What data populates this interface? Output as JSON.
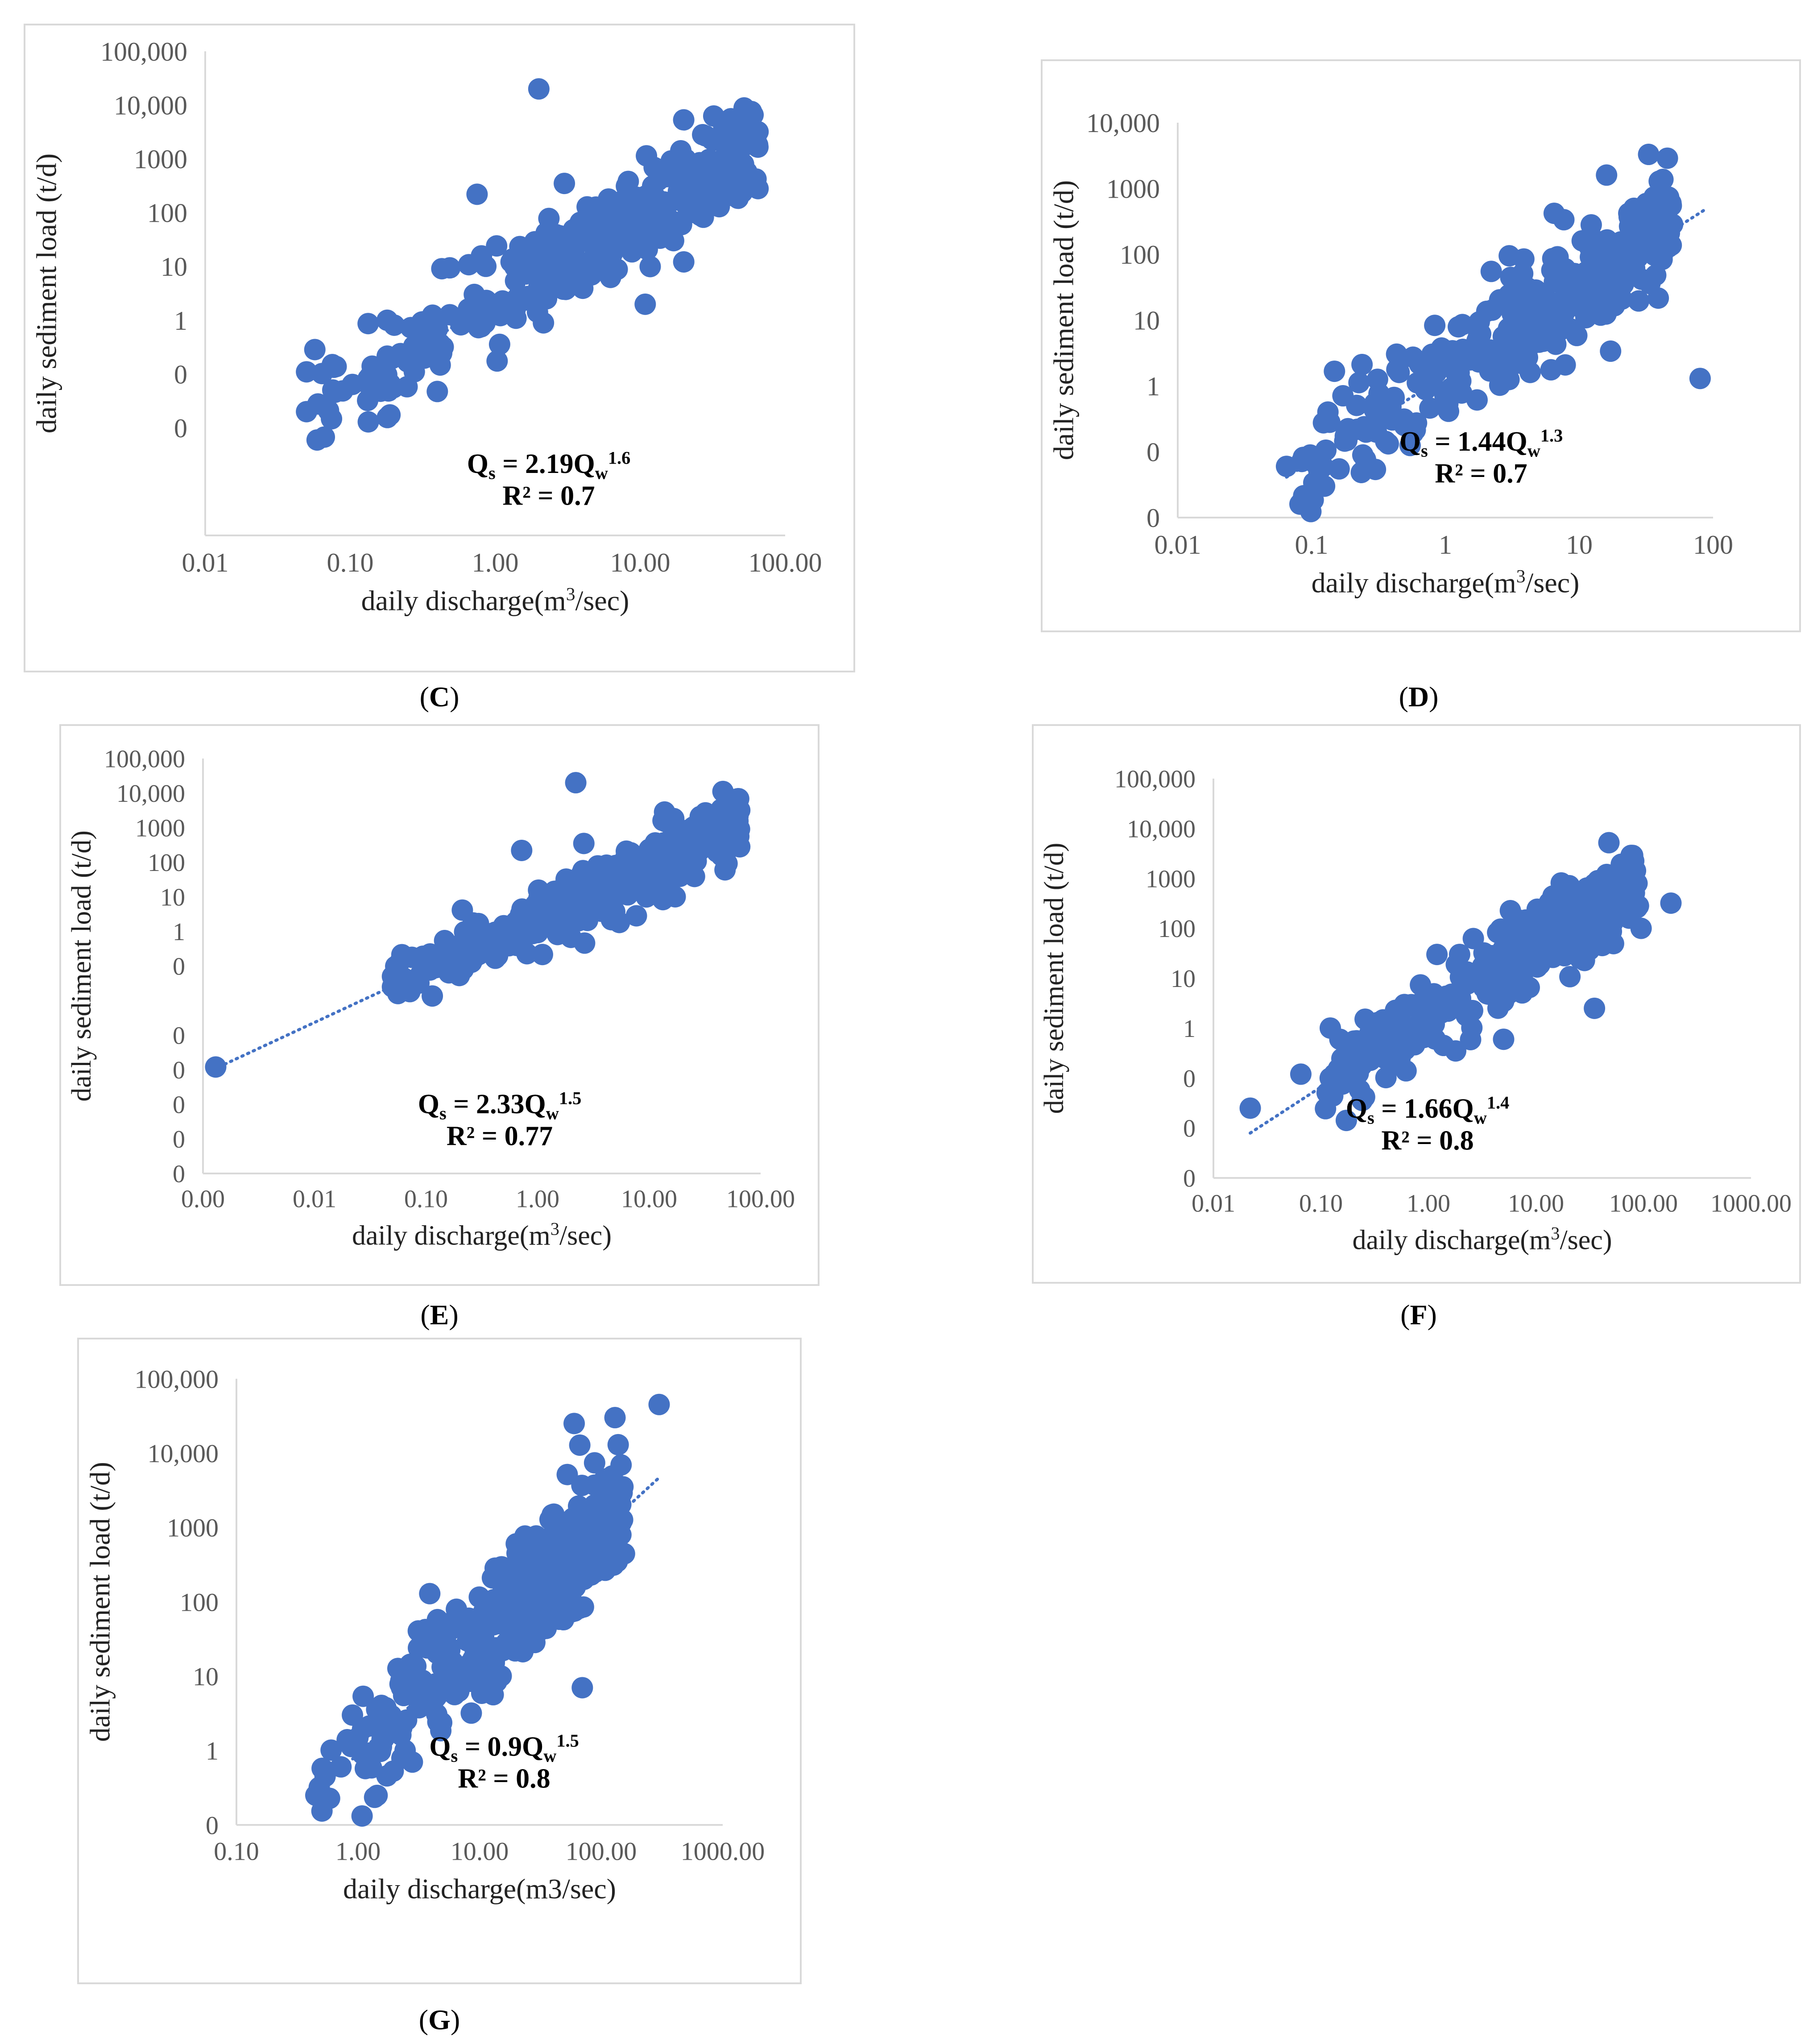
{
  "figure": {
    "point_color": "#4472c4",
    "trend_color": "#4472c4",
    "frame_color": "#d9d9d9"
  },
  "chart_data": [
    {
      "id": "C",
      "type": "scatter",
      "caption": "C",
      "xlabel_base": "daily discharge(m",
      "xlabel_sup": "3",
      "xlabel_tail": "/sec)",
      "ylabel": "daily sediment load (t/d)",
      "x_scale": "log",
      "y_scale": "log",
      "xlim": [
        0.01,
        100
      ],
      "ylim": [
        0.0001,
        100000
      ],
      "x_ticks": [
        0.01,
        0.1,
        1,
        10,
        100
      ],
      "x_tick_labels": [
        "0.01",
        "0.10",
        "1.00",
        "10.00",
        "100.00"
      ],
      "y_ticks": [
        0.0001,
        0.001,
        0.01,
        0.1,
        1,
        10,
        100,
        1000,
        10000,
        100000
      ],
      "y_tick_labels": [
        "0",
        "0",
        "1",
        "10",
        "100",
        "1000",
        "10,000",
        "100,000"
      ],
      "y_tick_values": [
        0.01,
        0.1,
        1,
        10,
        100,
        1000,
        10000,
        100000
      ],
      "equation": {
        "coef": "Qs = 2.19Q",
        "sub_s": "s",
        "sub_w": "w",
        "exp": "1.6",
        "r2": "R² = 0.7"
      },
      "trend": {
        "a": 2.19,
        "b": 1.6,
        "x_from": 0.05,
        "x_to": 60
      },
      "points_main": {
        "n": 330,
        "seed": 11,
        "x_min": 0.05,
        "x_max": 65,
        "scatter": 0.45
      },
      "outliers": [
        [
          2.0,
          20000
        ],
        [
          0.75,
          220
        ],
        [
          3.0,
          350
        ],
        [
          0.18,
          1.0
        ],
        [
          65,
          280
        ],
        [
          65,
          3200
        ],
        [
          0.05,
          0.02
        ],
        [
          0.05,
          0.11
        ]
      ]
    },
    {
      "id": "D",
      "type": "scatter",
      "caption": "D",
      "xlabel_base": "daily discharge(m",
      "xlabel_sup": "3",
      "xlabel_tail": "/sec)",
      "ylabel": "daily sediment load (t/d)",
      "x_scale": "log",
      "y_scale": "log",
      "xlim": [
        0.01,
        100
      ],
      "ylim": [
        0.01,
        10000
      ],
      "x_ticks": [
        0.01,
        0.1,
        1,
        10,
        100
      ],
      "x_tick_labels": [
        "0.01",
        "0.1",
        "1",
        "10",
        "100"
      ],
      "y_tick_values": [
        0.01,
        0.1,
        1,
        10,
        100,
        1000,
        10000
      ],
      "y_tick_labels": [
        "0",
        "0",
        "1",
        "10",
        "100",
        "1000",
        "10,000"
      ],
      "equation": {
        "coef": "Qs = 1.44Q",
        "sub_s": "s",
        "sub_w": "w",
        "exp": "1.3",
        "r2": "R² = 0.7"
      },
      "trend": {
        "a": 1.44,
        "b": 1.3,
        "x_from": 0.065,
        "x_to": 90
      },
      "points_main": {
        "n": 300,
        "seed": 23,
        "x_min": 0.07,
        "x_max": 50,
        "scatter": 0.42
      },
      "outliers": [
        [
          0.065,
          0.06
        ],
        [
          80,
          1.3
        ],
        [
          33,
          3300
        ],
        [
          6.5,
          420
        ],
        [
          16,
          1600
        ],
        [
          2.2,
          55
        ],
        [
          3.0,
          95
        ]
      ]
    },
    {
      "id": "E",
      "type": "scatter",
      "caption": "E",
      "xlabel_base": "daily discharge(m",
      "xlabel_sup": "3",
      "xlabel_tail": "/sec)",
      "ylabel": "daily sediment load (t/d)",
      "x_scale": "log",
      "y_scale": "log",
      "xlim": [
        0.001,
        100
      ],
      "ylim": [
        1e-07,
        100000
      ],
      "x_ticks": [
        0.001,
        0.01,
        0.1,
        1,
        10,
        100
      ],
      "x_tick_labels": [
        "0.00",
        "0.01",
        "0.10",
        "1.00",
        "10.00",
        "100.00"
      ],
      "y_tick_values": [
        1e-07,
        1e-06,
        1e-05,
        0.0001,
        0.001,
        0.01,
        0.1,
        1,
        10,
        100,
        1000,
        10000,
        100000
      ],
      "y_tick_labels": [
        "0",
        "0",
        "0",
        "0",
        "0",
        "0",
        "1",
        "10",
        "100",
        "1000",
        "10,000",
        "100,000"
      ],
      "y_tick_values_shown": [
        1e-07,
        1e-06,
        1e-05,
        0.0001,
        0.001,
        0.1,
        1,
        10,
        100,
        1000,
        10000,
        100000
      ],
      "equation": {
        "coef": "Qs = 2.33Q",
        "sub_s": "s",
        "sub_w": "w",
        "exp": "1.5",
        "r2": "R² = 0.77"
      },
      "trend": {
        "a": 2.33,
        "b": 1.5,
        "x_from": 0.0014,
        "x_to": 60
      },
      "points_main": {
        "n": 330,
        "seed": 37,
        "x_min": 0.05,
        "x_max": 65,
        "scatter": 0.45
      },
      "outliers": [
        [
          0.0013,
          0.00012
        ],
        [
          2.2,
          20000
        ],
        [
          0.72,
          220
        ],
        [
          2.6,
          350
        ],
        [
          65,
          280
        ],
        [
          65,
          3200
        ],
        [
          0.05,
          0.05
        ],
        [
          0.05,
          0.025
        ]
      ]
    },
    {
      "id": "F",
      "type": "scatter",
      "caption": "F",
      "xlabel_base": "daily discharge(m",
      "xlabel_sup": "3",
      "xlabel_tail": "/sec)",
      "ylabel": "daily sediment load (t/d)",
      "x_scale": "log",
      "y_scale": "log",
      "xlim": [
        0.01,
        1000
      ],
      "ylim": [
        0.001,
        100000
      ],
      "x_ticks": [
        0.01,
        0.1,
        1,
        10,
        100,
        1000
      ],
      "x_tick_labels": [
        "0.01",
        "0.10",
        "1.00",
        "10.00",
        "100.00",
        "1000.00"
      ],
      "y_tick_values": [
        0.001,
        0.01,
        0.1,
        1,
        10,
        100,
        1000,
        10000,
        100000
      ],
      "y_tick_labels": [
        "0",
        "0",
        "0",
        "1",
        "10",
        "100",
        "1000",
        "10,000",
        "100,000"
      ],
      "equation": {
        "coef": "Qs = 1.66Q",
        "sub_s": "s",
        "sub_w": "w",
        "exp": "1.4",
        "r2": "R² = 0.8"
      },
      "trend": {
        "a": 1.66,
        "b": 1.4,
        "x_from": 0.022,
        "x_to": 90
      },
      "points_main": {
        "n": 330,
        "seed": 51,
        "x_min": 0.1,
        "x_max": 90,
        "scatter": 0.4
      },
      "outliers": [
        [
          0.022,
          0.025
        ],
        [
          0.065,
          0.12
        ],
        [
          0.15,
          0.6
        ],
        [
          180,
          320
        ],
        [
          95,
          100
        ],
        [
          35,
          2.5
        ],
        [
          5,
          0.6
        ],
        [
          1.2,
          30
        ]
      ]
    },
    {
      "id": "G",
      "type": "scatter",
      "caption": "G",
      "xlabel_base": "daily discharge(m3/sec)",
      "xlabel_sup": "",
      "xlabel_tail": "",
      "ylabel": "daily sediment load (t/d)",
      "x_scale": "log",
      "y_scale": "log",
      "xlim": [
        0.1,
        1000
      ],
      "ylim": [
        0.1,
        100000
      ],
      "x_ticks": [
        0.1,
        1,
        10,
        100,
        1000
      ],
      "x_tick_labels": [
        "0.10",
        "1.00",
        "10.00",
        "100.00",
        "1000.00"
      ],
      "y_tick_values": [
        0.1,
        1,
        10,
        100,
        1000,
        10000,
        100000
      ],
      "y_tick_labels": [
        "0",
        "1",
        "10",
        "100",
        "1000",
        "10,000",
        "100,000"
      ],
      "equation": {
        "coef": "Qs = 0.9Q",
        "sub_s": "s",
        "sub_w": "w",
        "exp": "1.5",
        "r2": "R² = 0.8"
      },
      "trend": {
        "a": 0.9,
        "b": 1.5,
        "x_from": 0.45,
        "x_to": 300
      },
      "points_main": {
        "n": 360,
        "seed": 73,
        "x_min": 0.5,
        "x_max": 160,
        "scatter": 0.42
      },
      "outliers": [
        [
          0.45,
          0.25
        ],
        [
          0.48,
          0.32
        ],
        [
          300,
          45000
        ],
        [
          70,
          7
        ],
        [
          0.9,
          3
        ],
        [
          2.8,
          0.7
        ],
        [
          130,
          30000
        ],
        [
          60,
          25000
        ]
      ]
    }
  ]
}
